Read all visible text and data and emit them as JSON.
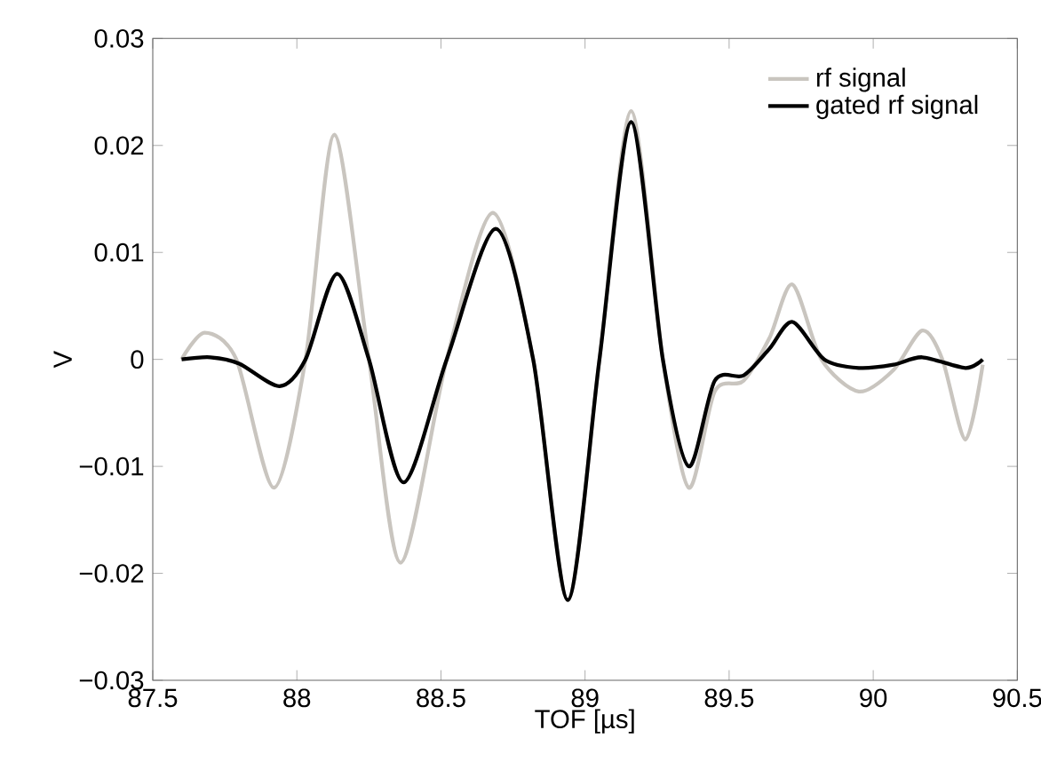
{
  "chart_data": {
    "type": "line",
    "xlabel": "TOF [µs]",
    "ylabel": "V",
    "xlim": [
      87.5,
      90.5
    ],
    "xticks": [
      87.5,
      88,
      88.5,
      89,
      89.5,
      90,
      90.5
    ],
    "ylim": [
      -0.03,
      0.03
    ],
    "yticks": [
      {
        "value": -0.03,
        "label": "−0.03"
      },
      {
        "value": -0.02,
        "label": "−0.02"
      },
      {
        "value": -0.01,
        "label": "−0.01"
      },
      0,
      0.01,
      0.02,
      0.03
    ],
    "grid": false,
    "legend": "top right",
    "marker": "none",
    "line_style": "solid",
    "series": [
      {
        "name": "rf signal",
        "color": "#c9c5bf",
        "x": [
          87.6,
          87.68,
          87.79,
          87.92,
          88.03,
          88.13,
          88.25,
          88.36,
          88.52,
          88.68,
          88.82,
          88.94,
          89.05,
          89.16,
          89.27,
          89.36,
          89.45,
          89.55,
          89.64,
          89.72,
          89.82,
          89.95,
          90.07,
          90.17,
          90.24,
          90.32,
          90.38
        ],
        "values": [
          0,
          0.0025,
          0,
          -0.012,
          0,
          0.021,
          0,
          -0.019,
          0,
          0.0137,
          0,
          -0.0225,
          0,
          0.0232,
          0,
          -0.012,
          -0.003,
          -0.002,
          0.002,
          0.007,
          0,
          -0.003,
          -0.001,
          0.0027,
          0,
          -0.0075,
          -0.0005
        ]
      },
      {
        "name": "gated rf signal",
        "color": "#000000",
        "x": [
          87.6,
          87.7,
          87.8,
          87.94,
          88.03,
          88.14,
          88.25,
          88.37,
          88.52,
          88.69,
          88.82,
          88.94,
          89.05,
          89.16,
          89.27,
          89.36,
          89.45,
          89.55,
          89.64,
          89.72,
          89.83,
          89.95,
          90.07,
          90.17,
          90.32,
          90.38
        ],
        "values": [
          0,
          0.0002,
          -0.0004,
          -0.0025,
          0,
          0.008,
          0,
          -0.0115,
          0,
          0.0122,
          0,
          -0.0225,
          0,
          0.0222,
          0,
          -0.01,
          -0.002,
          -0.0015,
          0.001,
          0.0035,
          0,
          -0.0008,
          -0.0005,
          0.0002,
          -0.0008,
          0
        ]
      }
    ]
  }
}
